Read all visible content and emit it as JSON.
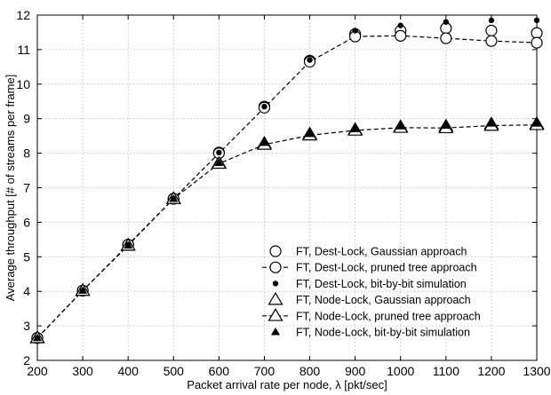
{
  "chart_data": {
    "type": "line",
    "title": "",
    "xlabel": "Packet arrival rate per node, λ [pkt/sec]",
    "ylabel": "Average throughput [# of streams per frame]",
    "xlim": [
      200,
      1300
    ],
    "ylim": [
      2,
      12
    ],
    "x_ticks": [
      "200",
      "300",
      "400",
      "500",
      "600",
      "700",
      "800",
      "900",
      "1000",
      "1100",
      "1200",
      "1300"
    ],
    "y_ticks": [
      "2",
      "3",
      "4",
      "5",
      "6",
      "7",
      "8",
      "9",
      "10",
      "11",
      "12"
    ],
    "grid": true,
    "legend_position": "bottom-right",
    "x": [
      200,
      300,
      400,
      500,
      600,
      700,
      800,
      900,
      1000,
      1100,
      1200,
      1300
    ],
    "series": [
      {
        "name": "FT, Dest-Lock, Gaussian approach",
        "marker": "open-circle",
        "line": "none",
        "values": [
          2.65,
          4.02,
          5.35,
          6.68,
          8.02,
          9.35,
          10.68,
          11.45,
          11.55,
          11.62,
          11.55,
          11.48
        ]
      },
      {
        "name": "FT, Dest-Lock, pruned tree approach",
        "marker": "open-circle",
        "line": "dashed",
        "values": [
          2.65,
          4.02,
          5.35,
          6.68,
          8.0,
          9.32,
          10.65,
          11.38,
          11.4,
          11.33,
          11.25,
          11.2
        ]
      },
      {
        "name": "FT, Dest-Lock, bit-by-bit simulation",
        "marker": "filled-circle",
        "line": "none",
        "values": [
          2.65,
          4.02,
          5.35,
          6.68,
          8.02,
          9.35,
          10.7,
          11.55,
          11.7,
          11.8,
          11.85,
          11.85
        ]
      },
      {
        "name": "FT, Node-Lock, Gaussian approach",
        "marker": "open-triangle",
        "line": "none",
        "values": [
          2.65,
          4.02,
          5.33,
          6.68,
          7.72,
          8.28,
          8.55,
          8.68,
          8.76,
          8.78,
          8.84,
          8.85
        ]
      },
      {
        "name": "FT, Node-Lock, pruned tree approach",
        "marker": "open-triangle",
        "line": "dashed",
        "values": [
          2.65,
          4.02,
          5.33,
          6.68,
          7.7,
          8.25,
          8.52,
          8.66,
          8.74,
          8.73,
          8.8,
          8.82
        ]
      },
      {
        "name": "FT, Node-Lock, bit-by-bit simulation",
        "marker": "filled-triangle",
        "line": "none",
        "values": [
          2.65,
          4.02,
          5.33,
          6.68,
          7.72,
          8.3,
          8.56,
          8.7,
          8.78,
          8.8,
          8.86,
          8.86
        ]
      }
    ]
  }
}
